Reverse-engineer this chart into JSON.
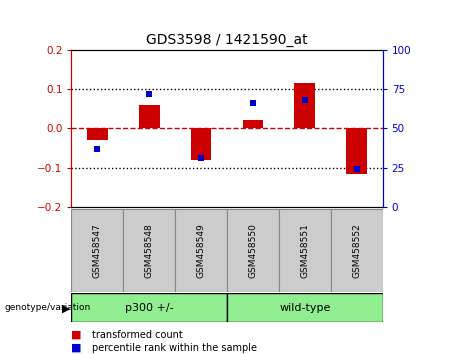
{
  "title": "GDS3598 / 1421590_at",
  "samples": [
    "GSM458547",
    "GSM458548",
    "GSM458549",
    "GSM458550",
    "GSM458551",
    "GSM458552"
  ],
  "red_values": [
    -0.03,
    0.06,
    -0.08,
    0.022,
    0.115,
    -0.115
  ],
  "blue_values_pct": [
    37,
    72,
    31,
    66,
    68,
    24
  ],
  "ylim_left": [
    -0.2,
    0.2
  ],
  "ylim_right": [
    0,
    100
  ],
  "left_ticks": [
    -0.2,
    -0.1,
    0,
    0.1,
    0.2
  ],
  "right_ticks": [
    0,
    25,
    50,
    75,
    100
  ],
  "left_tick_color": "#cc0000",
  "right_tick_color": "#0000cc",
  "red_color": "#cc0000",
  "blue_color": "#0000cc",
  "zero_line_color": "#cc0000",
  "dotted_line_color": "#000000",
  "bar_width": 0.4,
  "blue_marker_size": 5,
  "genotype_label": "genotype/variation",
  "group1_label": "p300 +/-",
  "group2_label": "wild-type",
  "group1_color": "#90EE90",
  "group2_color": "#90EE90",
  "legend_red": "transformed count",
  "legend_blue": "percentile rank within the sample",
  "label_bg": "#cccccc"
}
